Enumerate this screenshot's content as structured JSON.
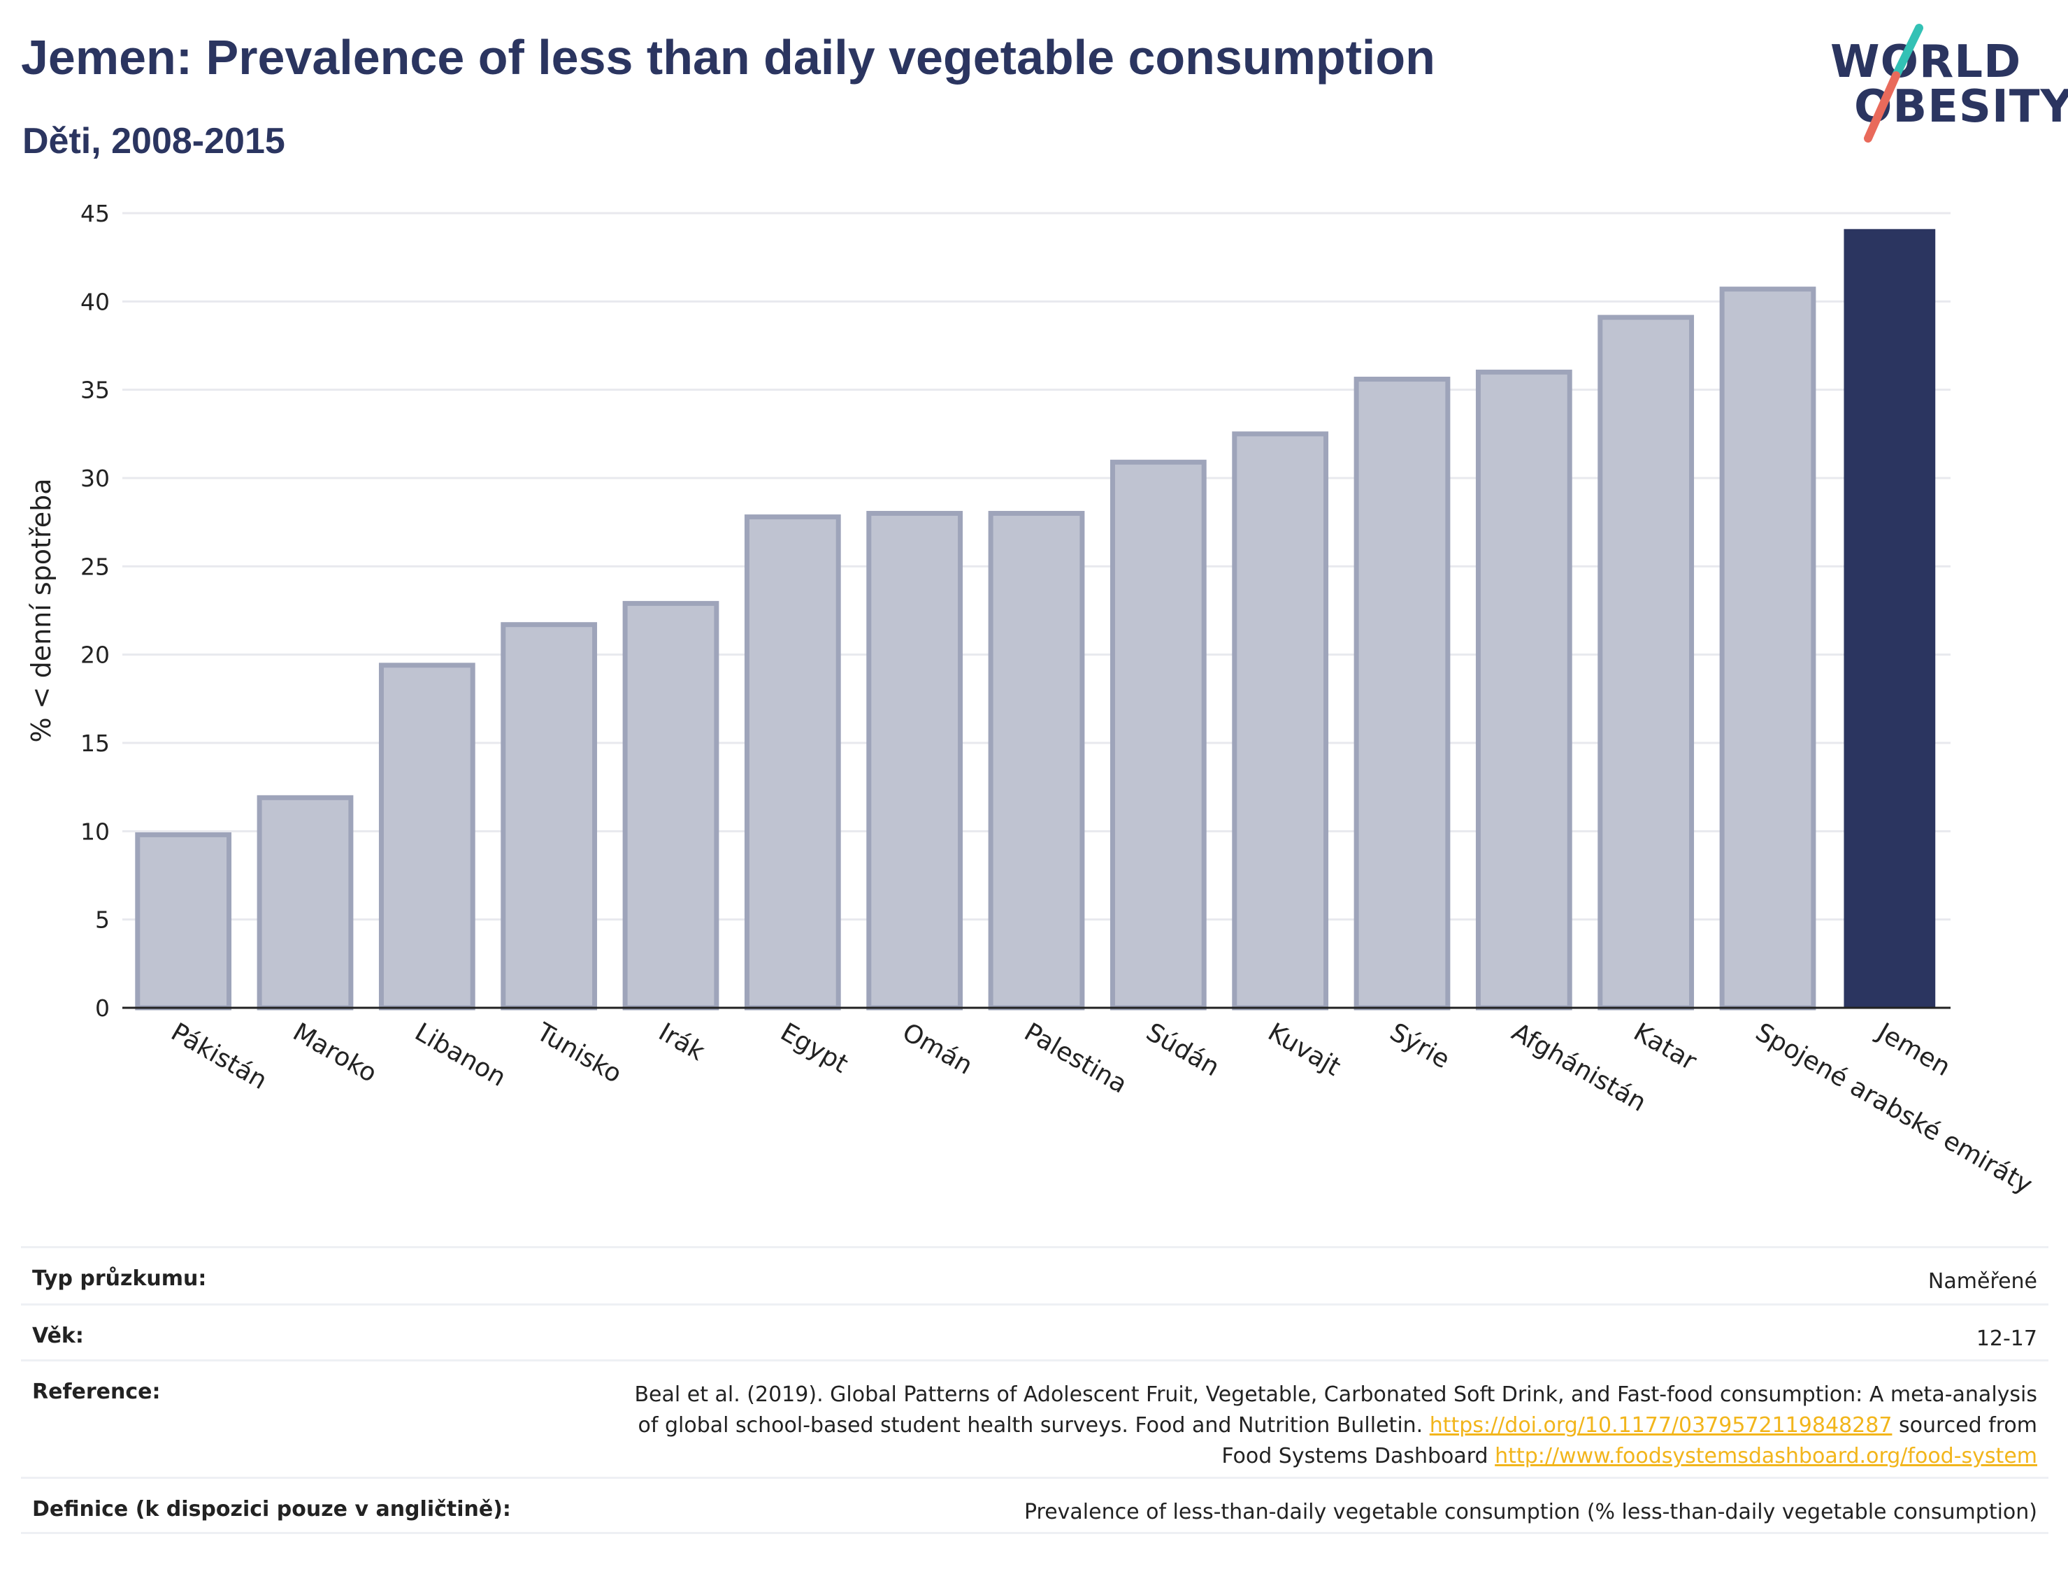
{
  "header": {
    "title": "Jemen: Prevalence of less than daily vegetable consumption",
    "subtitle": "Děti, 2008-2015",
    "logo_line1": "WORLD",
    "logo_line2": "OBESITY"
  },
  "colors": {
    "primary": "#2b3560",
    "bar_muted": "#bfc3d1",
    "bar_muted_border": "#9ea4ba",
    "link": "#f2b51b",
    "logo_teal": "#33c1b5",
    "logo_coral": "#e96a5b"
  },
  "chart_data": {
    "type": "bar",
    "categories": [
      "Pákistán",
      "Maroko",
      "Libanon",
      "Tunisko",
      "Irák",
      "Egypt",
      "Omán",
      "Palestina",
      "Súdán",
      "Kuvajt",
      "Sýrie",
      "Afghánistán",
      "Katar",
      "Spojené arabské emiráty",
      "Jemen"
    ],
    "values": [
      9.8,
      11.9,
      19.4,
      21.7,
      22.9,
      27.8,
      28.0,
      28.0,
      30.9,
      32.5,
      35.6,
      36.0,
      39.1,
      40.7,
      44.1
    ],
    "highlight": "Jemen",
    "ylabel": "% < denní spotřeba",
    "ylim": [
      0,
      45
    ],
    "yticks": [
      0,
      5,
      10,
      15,
      20,
      25,
      30,
      35,
      40,
      45
    ],
    "grid": true
  },
  "info": {
    "survey_type_label": "Typ průzkumu:",
    "survey_type_value": "Naměřené",
    "age_label": "Věk:",
    "age_value": "12-17",
    "reference_label": "Reference:",
    "reference_text_1": "Beal et al. (2019). Global Patterns of Adolescent Fruit, Vegetable, Carbonated Soft Drink, and Fast-food consumption: A meta-analysis",
    "reference_text_2": "of global school-based student health surveys. Food and Nutrition Bulletin.",
    "reference_link_1": "https://doi.org/10.1177/0379572119848287",
    "reference_text_3": "sourced from",
    "reference_text_4": "Food Systems Dashboard",
    "reference_link_2": "http://www.foodsystemsdashboard.org/food-system",
    "definition_label": "Definice (k dispozici pouze v angličtině):",
    "definition_value": "Prevalence of less-than-daily vegetable consumption (% less-than-daily vegetable consumption)"
  }
}
